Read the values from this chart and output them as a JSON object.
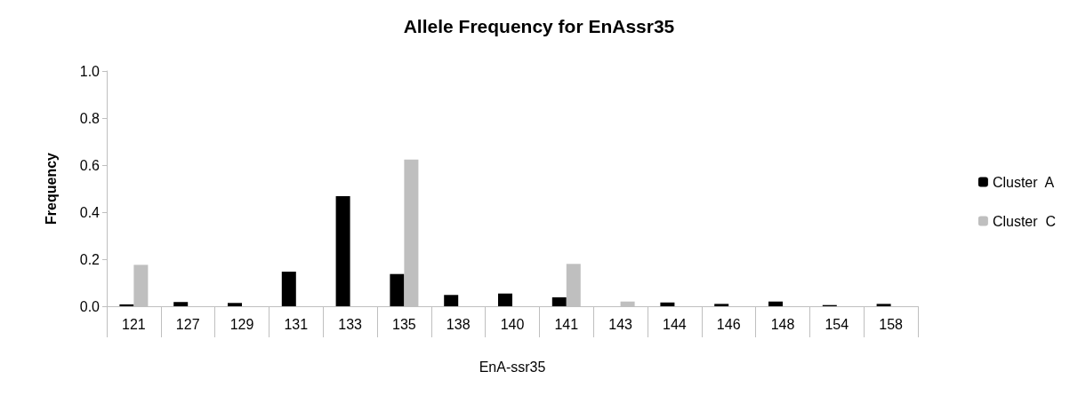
{
  "chart_data": {
    "type": "bar",
    "title": "Allele Frequency for EnAssr35",
    "xlabel": "EnA-ssr35",
    "ylabel": "Frequency",
    "categories": [
      "121",
      "127",
      "129",
      "131",
      "133",
      "135",
      "138",
      "140",
      "141",
      "143",
      "144",
      "146",
      "148",
      "154",
      "158"
    ],
    "series": [
      {
        "name": "Cluster  A",
        "color": "#000000",
        "values": [
          0.008,
          0.018,
          0.014,
          0.147,
          0.468,
          0.137,
          0.048,
          0.054,
          0.038,
          0,
          0.016,
          0.01,
          0.02,
          0.005,
          0.01
        ]
      },
      {
        "name": "Cluster  C",
        "color": "#bfbfbf",
        "values": [
          0.176,
          0,
          0,
          0,
          0,
          0.624,
          0,
          0,
          0.18,
          0.02,
          0,
          0,
          0,
          0,
          0
        ]
      }
    ],
    "ylim": [
      0,
      1
    ],
    "yticks": [
      {
        "value": 0,
        "label": "0.0"
      },
      0.2,
      0.4,
      0.6,
      0.8,
      {
        "value": 1,
        "label": "1.0"
      }
    ],
    "grid": false,
    "legend": "right"
  }
}
